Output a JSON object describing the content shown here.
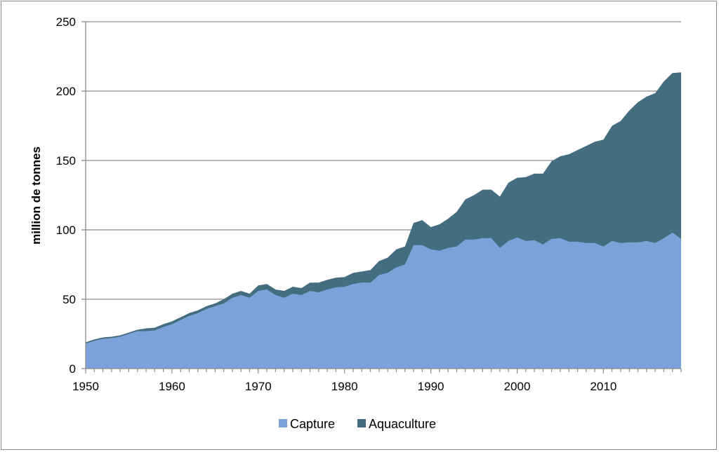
{
  "chart_data": {
    "type": "area",
    "stacked": true,
    "title": "",
    "xlabel": "",
    "ylabel": "million de tonnes",
    "xlim": [
      1950,
      2019
    ],
    "ylim": [
      0,
      250
    ],
    "y_ticks": [
      0,
      50,
      100,
      150,
      200,
      250
    ],
    "x_ticks": [
      1950,
      1960,
      1970,
      1980,
      1990,
      2000,
      2010
    ],
    "grid": "horizontal",
    "legend": "bottom",
    "x": [
      1950,
      1951,
      1952,
      1953,
      1954,
      1955,
      1956,
      1957,
      1958,
      1959,
      1960,
      1961,
      1962,
      1963,
      1964,
      1965,
      1966,
      1967,
      1968,
      1969,
      1970,
      1971,
      1972,
      1973,
      1974,
      1975,
      1976,
      1977,
      1978,
      1979,
      1980,
      1981,
      1982,
      1983,
      1984,
      1985,
      1986,
      1987,
      1988,
      1989,
      1990,
      1991,
      1992,
      1993,
      1994,
      1995,
      1996,
      1997,
      1998,
      1999,
      2000,
      2001,
      2002,
      2003,
      2004,
      2005,
      2006,
      2007,
      2008,
      2009,
      2010,
      2011,
      2012,
      2013,
      2014,
      2015,
      2016,
      2017,
      2018,
      2019
    ],
    "series": [
      {
        "name": "Capture",
        "color": "#7ba2d9",
        "values": [
          18,
          20,
          21.5,
          22,
          23,
          25,
          27,
          27,
          27.5,
          30,
          32,
          35,
          38,
          40,
          43,
          45,
          47,
          51,
          53,
          51,
          56,
          57,
          53,
          51,
          54,
          53,
          56,
          55,
          57,
          58.5,
          59,
          61,
          62,
          62,
          67.5,
          69,
          73,
          75,
          89,
          89,
          86,
          85,
          87,
          88,
          93,
          93,
          94,
          94,
          87,
          92,
          94.5,
          92,
          92.5,
          89.5,
          93.5,
          94,
          91.5,
          91.5,
          90.5,
          90.5,
          88,
          92,
          90.5,
          91,
          91,
          92,
          90.5,
          94,
          98,
          93.5
        ]
      },
      {
        "name": "Aquaculture",
        "color": "#456d80",
        "values": [
          1,
          1,
          1,
          1,
          1,
          1,
          1,
          2,
          2,
          2,
          2,
          2,
          2,
          2,
          2,
          2,
          3,
          3,
          3,
          3,
          4,
          4,
          4,
          5,
          5,
          5,
          6,
          7,
          7,
          7,
          7,
          8,
          8,
          9,
          10,
          11,
          13,
          13,
          16,
          18,
          16,
          19,
          21,
          25,
          29,
          32,
          35,
          35,
          37,
          42,
          43,
          46,
          48,
          51,
          56,
          59,
          63,
          66,
          70,
          73,
          77,
          83,
          88,
          95,
          101,
          104,
          108,
          113,
          115,
          120
        ]
      }
    ]
  }
}
